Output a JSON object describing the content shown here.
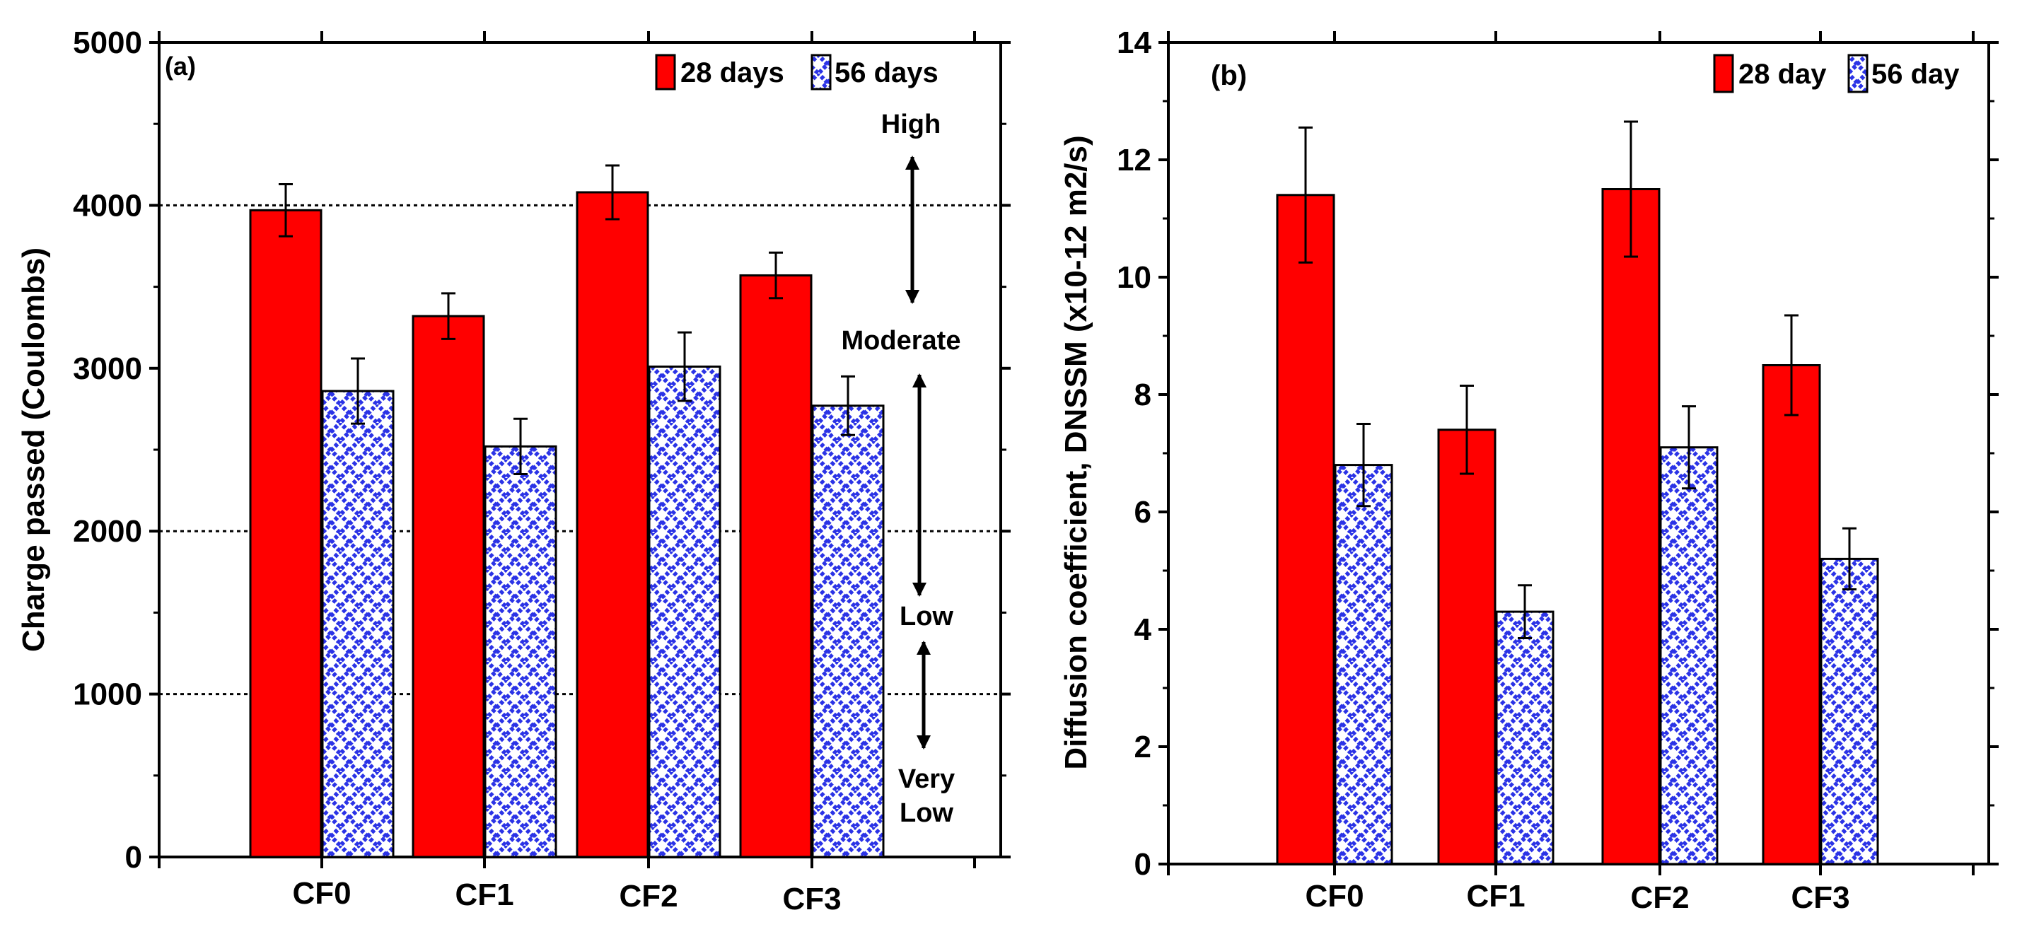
{
  "chart_data": [
    {
      "type": "bar",
      "panel_label": "(a)",
      "title": "",
      "xlabel": "",
      "ylabel": "Charge passed (Coulombs)",
      "ylim": [
        0,
        5000
      ],
      "yticks": [
        "0",
        "1000",
        "2000",
        "3000",
        "4000",
        "5000"
      ],
      "categories": [
        "CF0",
        "CF1",
        "CF2",
        "CF3"
      ],
      "series": [
        {
          "name": "28 days",
          "values": [
            3970,
            3320,
            4080,
            3570
          ],
          "errors": [
            160,
            140,
            165,
            140
          ]
        },
        {
          "name": "56 days",
          "values": [
            2860,
            2520,
            3010,
            2770
          ],
          "errors": [
            200,
            170,
            210,
            180
          ]
        }
      ],
      "reference_lines": [
        4000,
        2000,
        1000
      ],
      "annotations": {
        "high": "High",
        "moderate": "Moderate",
        "low": "Low",
        "very": "Very",
        "very_low": "Low"
      },
      "legend": "top-right"
    },
    {
      "type": "bar",
      "panel_label": "(b)",
      "title": "",
      "xlabel": "",
      "ylabel": "Diffusion coefficient, DNSSM (x10-12 m2/s)",
      "ylim": [
        0,
        14
      ],
      "yticks": [
        "0",
        "2",
        "4",
        "6",
        "8",
        "10",
        "12",
        "14"
      ],
      "categories": [
        "CF0",
        "CF1",
        "CF2",
        "CF3"
      ],
      "series": [
        {
          "name": "28 day",
          "values": [
            11.4,
            7.4,
            11.5,
            8.5
          ],
          "errors": [
            1.15,
            0.75,
            1.15,
            0.85
          ]
        },
        {
          "name": "56 day",
          "values": [
            6.8,
            4.3,
            7.1,
            5.2
          ],
          "errors": [
            0.7,
            0.45,
            0.7,
            0.52
          ]
        }
      ],
      "legend": "top-right"
    }
  ],
  "colors": {
    "bar_28": "#ff0000",
    "bar_56_fill": "#ffffff",
    "bar_56_pattern": "#2b33e6",
    "axis": "#000000"
  }
}
